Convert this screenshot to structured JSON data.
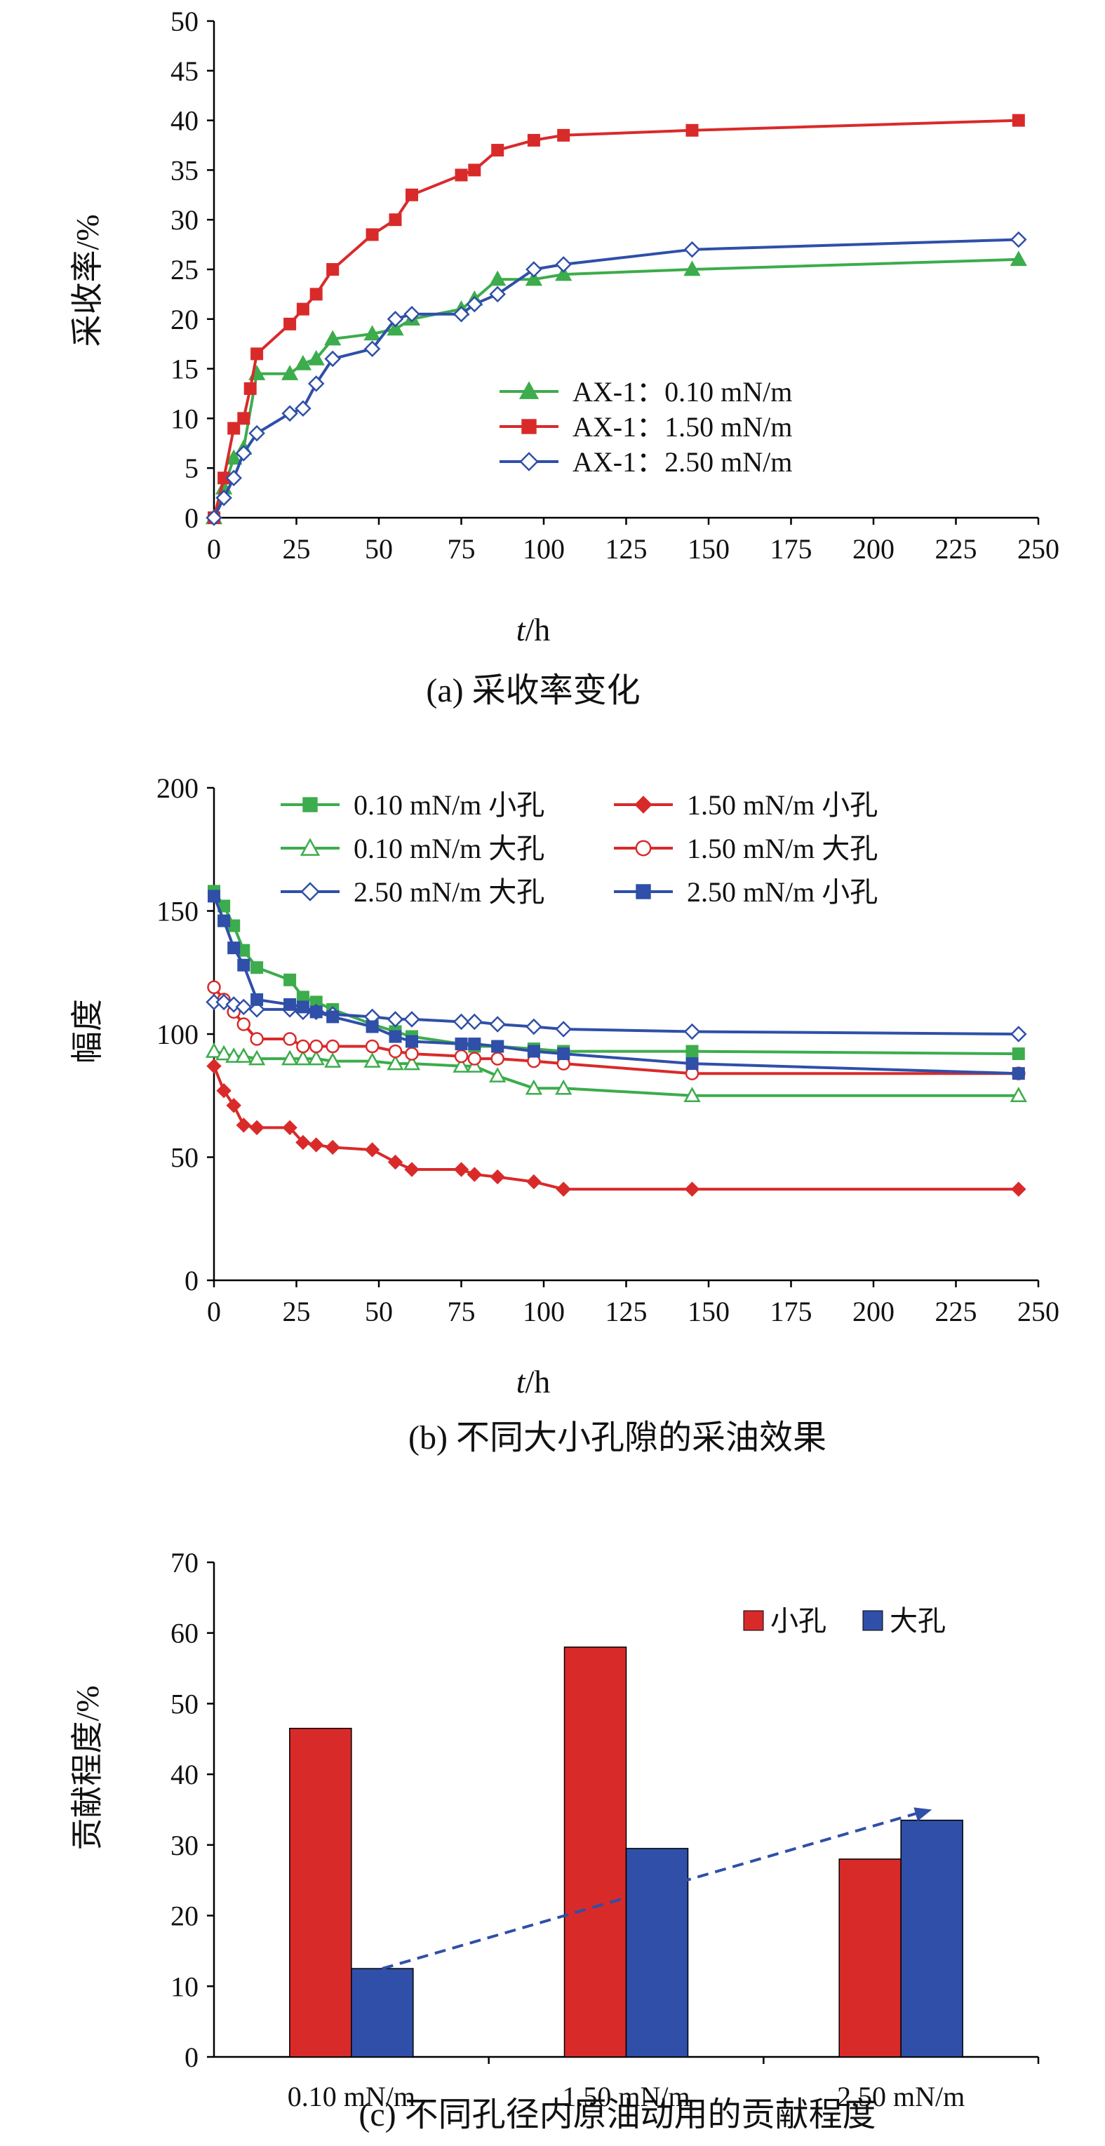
{
  "chart_data": [
    {
      "type": "line",
      "caption": "(a) 采收率变化",
      "xlabel_var": "t",
      "xlabel_unit": "/h",
      "ylabel": "采收率/%",
      "xlim": [
        0,
        250
      ],
      "ylim": [
        0,
        50
      ],
      "xticks": [
        0,
        25,
        50,
        75,
        100,
        125,
        150,
        175,
        200,
        225,
        250
      ],
      "yticks": [
        0,
        5,
        10,
        15,
        20,
        25,
        30,
        35,
        40,
        45,
        50
      ],
      "legend_position": "lower-right",
      "series": [
        {
          "name": "AX-1：0.10 mN/m",
          "color": "#3cac4c",
          "marker": "triangle",
          "x": [
            0,
            3,
            6,
            9,
            13,
            23,
            27,
            31,
            36,
            48,
            55,
            60,
            75,
            79,
            86,
            97,
            106,
            145,
            244
          ],
          "y": [
            0,
            3,
            6,
            7,
            14.5,
            14.5,
            15.5,
            16,
            18,
            18.5,
            19,
            20,
            21,
            22,
            24,
            24,
            24.5,
            25,
            26
          ]
        },
        {
          "name": "AX-1：1.50 mN/m",
          "color": "#d92a2a",
          "marker": "square",
          "x": [
            0,
            3,
            6,
            9,
            11,
            13,
            23,
            27,
            31,
            36,
            48,
            55,
            60,
            75,
            79,
            86,
            97,
            106,
            145,
            244
          ],
          "y": [
            0,
            4,
            9,
            10,
            13,
            16.5,
            19.5,
            21,
            22.5,
            25,
            28.5,
            30,
            32.5,
            34.5,
            35,
            37,
            38,
            38.5,
            39,
            40
          ]
        },
        {
          "name": "AX-1：2.50 mN/m",
          "color": "#2f4fa8",
          "marker": "diamond",
          "x": [
            0,
            3,
            6,
            9,
            13,
            23,
            27,
            31,
            36,
            48,
            55,
            60,
            75,
            79,
            86,
            97,
            106,
            145,
            244
          ],
          "y": [
            0,
            2,
            4,
            6.5,
            8.5,
            10.5,
            11,
            13.5,
            16,
            17,
            20,
            20.5,
            20.5,
            21.5,
            22.5,
            25,
            25.5,
            27,
            28
          ]
        }
      ]
    },
    {
      "type": "line",
      "caption": "(b) 不同大小孔隙的采油效果",
      "xlabel_var": "t",
      "xlabel_unit": "/h",
      "ylabel": "幅度",
      "xlim": [
        0,
        250
      ],
      "ylim": [
        0,
        200
      ],
      "xticks": [
        0,
        25,
        50,
        75,
        100,
        125,
        150,
        175,
        200,
        225,
        250
      ],
      "yticks": [
        0,
        50,
        100,
        150,
        200
      ],
      "legend_position": "top",
      "series": [
        {
          "name": "0.10 mN/m 小孔",
          "color": "#3cac4c",
          "marker": "square",
          "x": [
            0,
            3,
            6,
            9,
            13,
            23,
            27,
            31,
            36,
            48,
            55,
            60,
            75,
            79,
            86,
            97,
            106,
            145,
            244
          ],
          "y": [
            158,
            152,
            144,
            134,
            127,
            122,
            115,
            113,
            110,
            104,
            101,
            99,
            96,
            95,
            95,
            94,
            93,
            93,
            92
          ]
        },
        {
          "name": "1.50 mN/m 小孔",
          "color": "#d92a2a",
          "marker": "filled-diamond",
          "x": [
            0,
            3,
            6,
            9,
            13,
            23,
            27,
            31,
            36,
            48,
            55,
            60,
            75,
            79,
            86,
            97,
            106,
            145,
            244
          ],
          "y": [
            87,
            77,
            71,
            63,
            62,
            62,
            56,
            55,
            54,
            53,
            48,
            45,
            45,
            43,
            42,
            40,
            37,
            37,
            37
          ]
        },
        {
          "name": "0.10 mN/m 大孔",
          "color": "#3cac4c",
          "marker": "open-triangle",
          "x": [
            0,
            3,
            6,
            9,
            13,
            23,
            27,
            31,
            36,
            48,
            55,
            60,
            75,
            79,
            86,
            97,
            106,
            145,
            244
          ],
          "y": [
            93,
            92,
            91,
            91,
            90,
            90,
            90,
            90,
            89,
            89,
            88,
            88,
            87,
            87,
            83,
            78,
            78,
            75,
            75
          ]
        },
        {
          "name": "1.50 mN/m 大孔",
          "color": "#d92a2a",
          "marker": "open-circle",
          "x": [
            0,
            3,
            6,
            9,
            13,
            23,
            27,
            31,
            36,
            48,
            55,
            60,
            75,
            79,
            86,
            97,
            106,
            145,
            244
          ],
          "y": [
            119,
            114,
            109,
            104,
            98,
            98,
            95,
            95,
            95,
            95,
            93,
            92,
            91,
            90,
            90,
            89,
            88,
            84,
            84
          ]
        },
        {
          "name": "2.50 mN/m 大孔",
          "color": "#2f4fa8",
          "marker": "open-diamond",
          "x": [
            0,
            3,
            6,
            9,
            13,
            23,
            27,
            31,
            36,
            48,
            55,
            60,
            75,
            79,
            86,
            97,
            106,
            145,
            244
          ],
          "y": [
            113,
            113,
            112,
            111,
            110,
            110,
            109,
            109,
            108,
            107,
            106,
            106,
            105,
            105,
            104,
            103,
            102,
            101,
            100
          ]
        },
        {
          "name": "2.50 mN/m 小孔",
          "color": "#2f4fa8",
          "marker": "square",
          "x": [
            0,
            3,
            6,
            9,
            13,
            23,
            27,
            31,
            36,
            48,
            55,
            60,
            75,
            79,
            86,
            97,
            106,
            145,
            244
          ],
          "y": [
            156,
            146,
            135,
            128,
            114,
            112,
            111,
            109,
            107,
            103,
            99,
            97,
            96,
            96,
            95,
            93,
            92,
            88,
            84
          ]
        }
      ]
    },
    {
      "type": "bar",
      "caption": "(c) 不同孔径内原油动用的贡献程度",
      "ylabel": "贡献程度/%",
      "ylim": [
        0,
        70
      ],
      "yticks": [
        0,
        10,
        20,
        30,
        40,
        50,
        60,
        70
      ],
      "categories": [
        "0.10 mN/m",
        "1.50 mN/m",
        "2.50 mN/m"
      ],
      "legend_position": "top-right",
      "series": [
        {
          "name": "小孔",
          "color": "#d92a2a",
          "values": [
            46.5,
            58,
            28
          ]
        },
        {
          "name": "大孔",
          "color": "#2f4fa8",
          "values": [
            12.5,
            29.5,
            33.5
          ]
        }
      ],
      "trend_arrow": {
        "color": "#2f4fa8",
        "from": [
          0,
          12.5
        ],
        "to": [
          2,
          35
        ]
      }
    }
  ]
}
